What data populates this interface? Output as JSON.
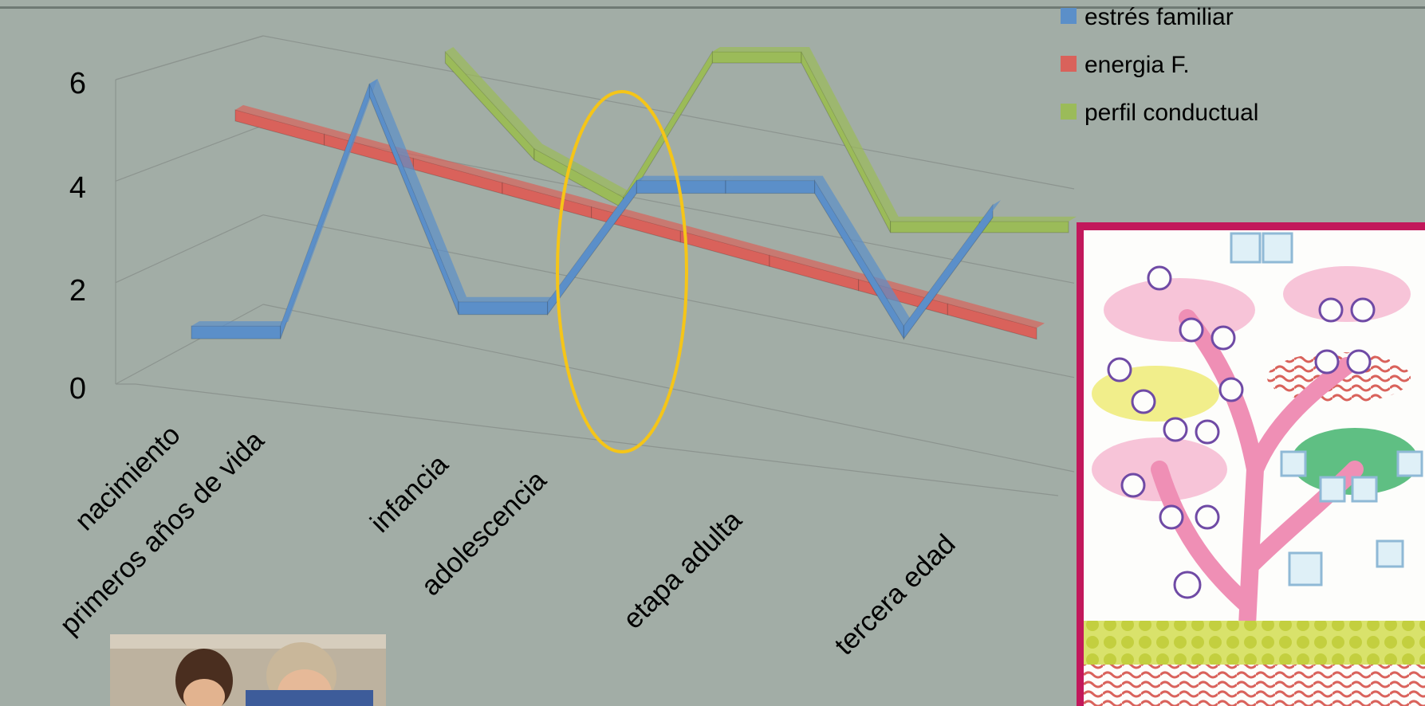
{
  "chart_data": {
    "type": "line",
    "subtype": "3d-ribbon",
    "categories": [
      "nacimiento",
      "primeros años de vida",
      "",
      "infancia",
      "adolescencia",
      "",
      "etapa adulta",
      "",
      "tercera edad",
      ""
    ],
    "series": [
      {
        "name": "estrés familiar",
        "color": "#5b8fc9",
        "values": [
          1,
          1,
          6,
          1.5,
          1.5,
          4,
          4,
          4,
          1,
          3.5
        ]
      },
      {
        "name": "energia F.",
        "color": "#d9625b",
        "values": [
          5,
          4.5,
          4,
          3.5,
          3,
          2.5,
          2,
          1.5,
          1,
          0.5
        ]
      },
      {
        "name": "perfil conductual",
        "color": "#9bbb59",
        "values": [
          null,
          null,
          6,
          4,
          3,
          6,
          6,
          2.5,
          2.5,
          2.5
        ]
      }
    ],
    "yticks": [
      "0",
      "2",
      "4",
      "6"
    ],
    "ylim": [
      0,
      6
    ],
    "grid": true,
    "legend_position": "top-right"
  },
  "images": {
    "photo": "father-and-son-photo",
    "tree": "family-tree-illustration"
  }
}
